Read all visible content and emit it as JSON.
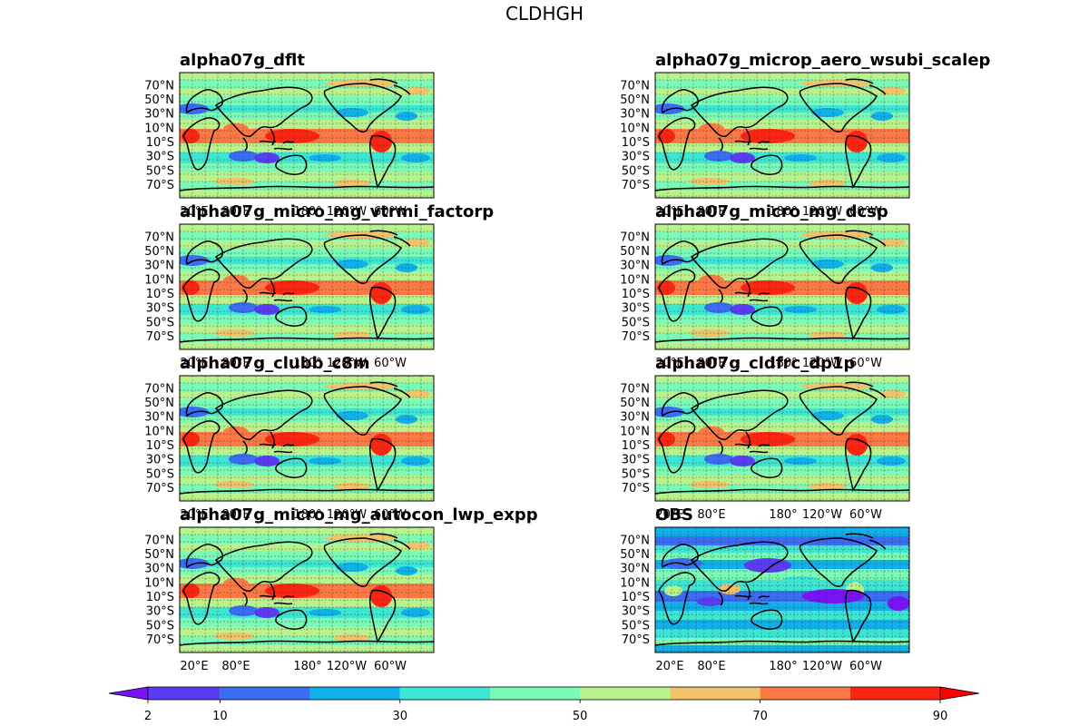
{
  "figure_title": "CLDHGH",
  "chart_data": {
    "type": "heatmap",
    "title": "CLDHGH",
    "lat_tick_labels": [
      "70°N",
      "50°N",
      "30°N",
      "10°N",
      "10°S",
      "30°S",
      "50°S",
      "70°S"
    ],
    "lon_tick_labels": [
      "20°E",
      "80°E",
      "180°",
      "120°W",
      "60°W"
    ],
    "colorbar": {
      "levels": [
        2,
        10,
        20,
        30,
        40,
        50,
        60,
        70,
        80,
        90
      ],
      "tick_labels": [
        "2",
        "10",
        "30",
        "50",
        "70",
        "90"
      ],
      "extend": "both",
      "colors": [
        "#7b12f9",
        "#5b3cf5",
        "#3a6cf4",
        "#10b0ea",
        "#3de6d2",
        "#7bf9b6",
        "#b8f28c",
        "#f0c26a",
        "#fd7844",
        "#ff2412",
        "#ff0000"
      ]
    },
    "panels": [
      {
        "name": "alpha07g_dflt",
        "variant": "model"
      },
      {
        "name": "alpha07g_microp_aero_wsubi_scalep",
        "variant": "model"
      },
      {
        "name": "alpha07g_micro_mg_vtrmi_factorp",
        "variant": "model"
      },
      {
        "name": "alpha07g_micro_mg_dcsp",
        "variant": "model"
      },
      {
        "name": "alpha07g_clubb_c8m",
        "variant": "model"
      },
      {
        "name": "alpha07g_cldfrc_dp1p",
        "variant": "model"
      },
      {
        "name": "alpha07g_micro_mg_autocon_lwp_expp",
        "variant": "model"
      },
      {
        "name": "OBS",
        "variant": "obs"
      }
    ]
  }
}
